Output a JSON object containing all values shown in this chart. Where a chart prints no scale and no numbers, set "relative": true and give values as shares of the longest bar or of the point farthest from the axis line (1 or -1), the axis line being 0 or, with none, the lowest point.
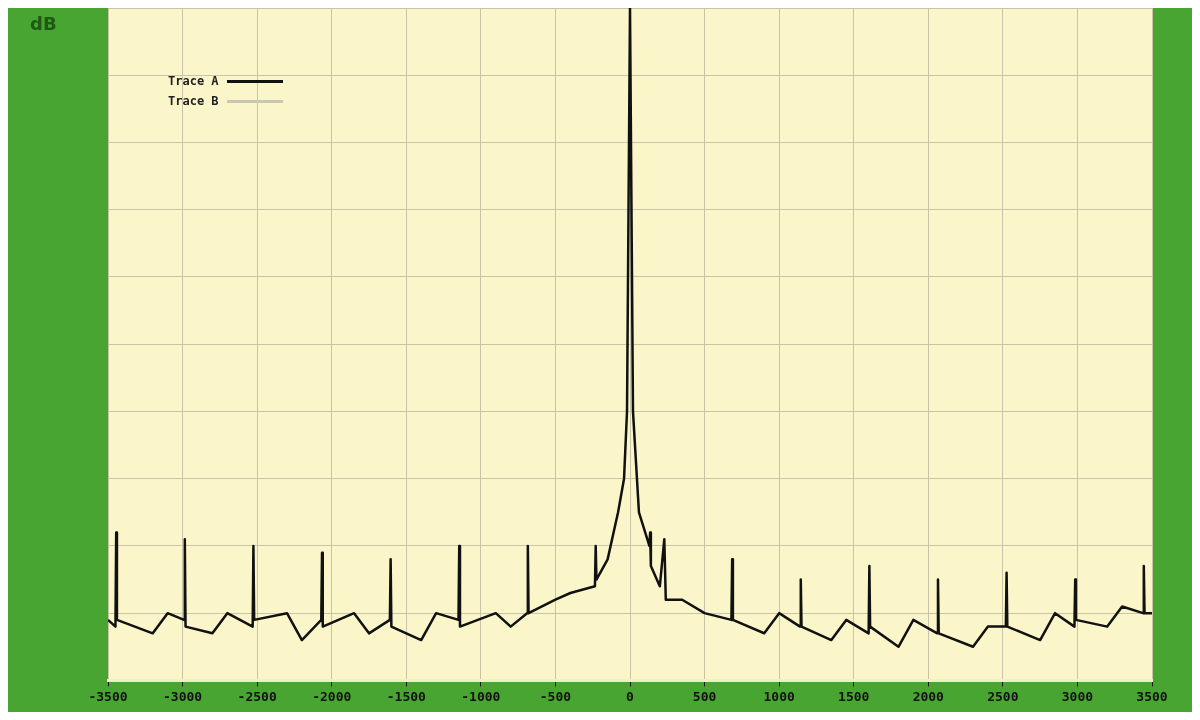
{
  "chart_data": {
    "type": "line",
    "ylabel": "dB",
    "relative": true,
    "xlim": [
      -3500,
      3500
    ],
    "xticks": [
      -3500,
      -3000,
      -2500,
      -2000,
      -1500,
      -1000,
      -500,
      0,
      500,
      1000,
      1500,
      2000,
      2500,
      3000,
      3500
    ],
    "grid": true,
    "legend": "top left",
    "marker": "none",
    "x": [
      -3500,
      -3450,
      -3445,
      -3440,
      -3200,
      -3100,
      -2990,
      -2985,
      -2980,
      -2800,
      -2700,
      -2530,
      -2525,
      -2520,
      -2300,
      -2200,
      -2070,
      -2065,
      -2060,
      -1850,
      -1750,
      -1610,
      -1605,
      -1600,
      -1400,
      -1300,
      -1150,
      -1145,
      -1140,
      -900,
      -800,
      -690,
      -685,
      -680,
      -500,
      -400,
      -235,
      -230,
      -225,
      -150,
      -80,
      -40,
      -20,
      0,
      20,
      60,
      130,
      135,
      140,
      200,
      230,
      240,
      350,
      500,
      680,
      685,
      690,
      900,
      1000,
      1140,
      1145,
      1150,
      1350,
      1450,
      1600,
      1605,
      1610,
      1800,
      1900,
      2060,
      2065,
      2070,
      2300,
      2400,
      2520,
      2525,
      2530,
      2750,
      2850,
      2980,
      2985,
      2990,
      3200,
      3300,
      3440,
      3445,
      3450,
      3500
    ],
    "series": [
      {
        "name": "Trace A",
        "color": "#111111",
        "values": [
          0.09,
          0.08,
          0.22,
          0.09,
          0.07,
          0.1,
          0.09,
          0.21,
          0.08,
          0.07,
          0.1,
          0.08,
          0.2,
          0.09,
          0.1,
          0.06,
          0.09,
          0.19,
          0.08,
          0.1,
          0.07,
          0.09,
          0.18,
          0.08,
          0.06,
          0.1,
          0.09,
          0.2,
          0.08,
          0.1,
          0.08,
          0.1,
          0.2,
          0.1,
          0.12,
          0.13,
          0.14,
          0.2,
          0.15,
          0.18,
          0.25,
          0.3,
          0.4,
          1,
          0.4,
          0.25,
          0.2,
          0.22,
          0.17,
          0.14,
          0.21,
          0.12,
          0.12,
          0.1,
          0.09,
          0.18,
          0.09,
          0.07,
          0.1,
          0.08,
          0.15,
          0.08,
          0.06,
          0.09,
          0.07,
          0.17,
          0.08,
          0.05,
          0.09,
          0.07,
          0.15,
          0.07,
          0.05,
          0.08,
          0.08,
          0.16,
          0.08,
          0.06,
          0.1,
          0.08,
          0.15,
          0.09,
          0.08,
          0.11,
          0.1,
          0.17,
          0.1,
          0.1
        ]
      },
      {
        "name": "Trace B",
        "color": "#c8c8b4",
        "values": [
          null,
          null,
          null,
          null,
          null,
          null,
          null,
          null,
          null,
          null,
          null,
          null,
          null,
          null,
          null,
          null,
          null,
          null,
          null,
          null,
          null,
          null,
          null,
          null,
          null,
          null,
          null,
          null,
          null,
          null,
          null,
          null,
          null,
          null,
          null,
          null,
          null,
          null,
          null,
          null,
          null,
          null,
          null,
          null,
          null,
          null,
          null,
          null,
          null,
          null,
          null,
          null,
          null,
          null,
          null,
          null,
          null,
          null,
          null,
          null,
          null,
          null,
          null,
          null,
          null,
          null,
          null,
          null,
          null,
          null,
          null,
          null,
          null,
          null,
          null,
          null,
          null,
          null,
          null,
          null,
          null,
          null,
          null,
          null,
          null,
          null,
          null,
          null
        ]
      }
    ]
  }
}
